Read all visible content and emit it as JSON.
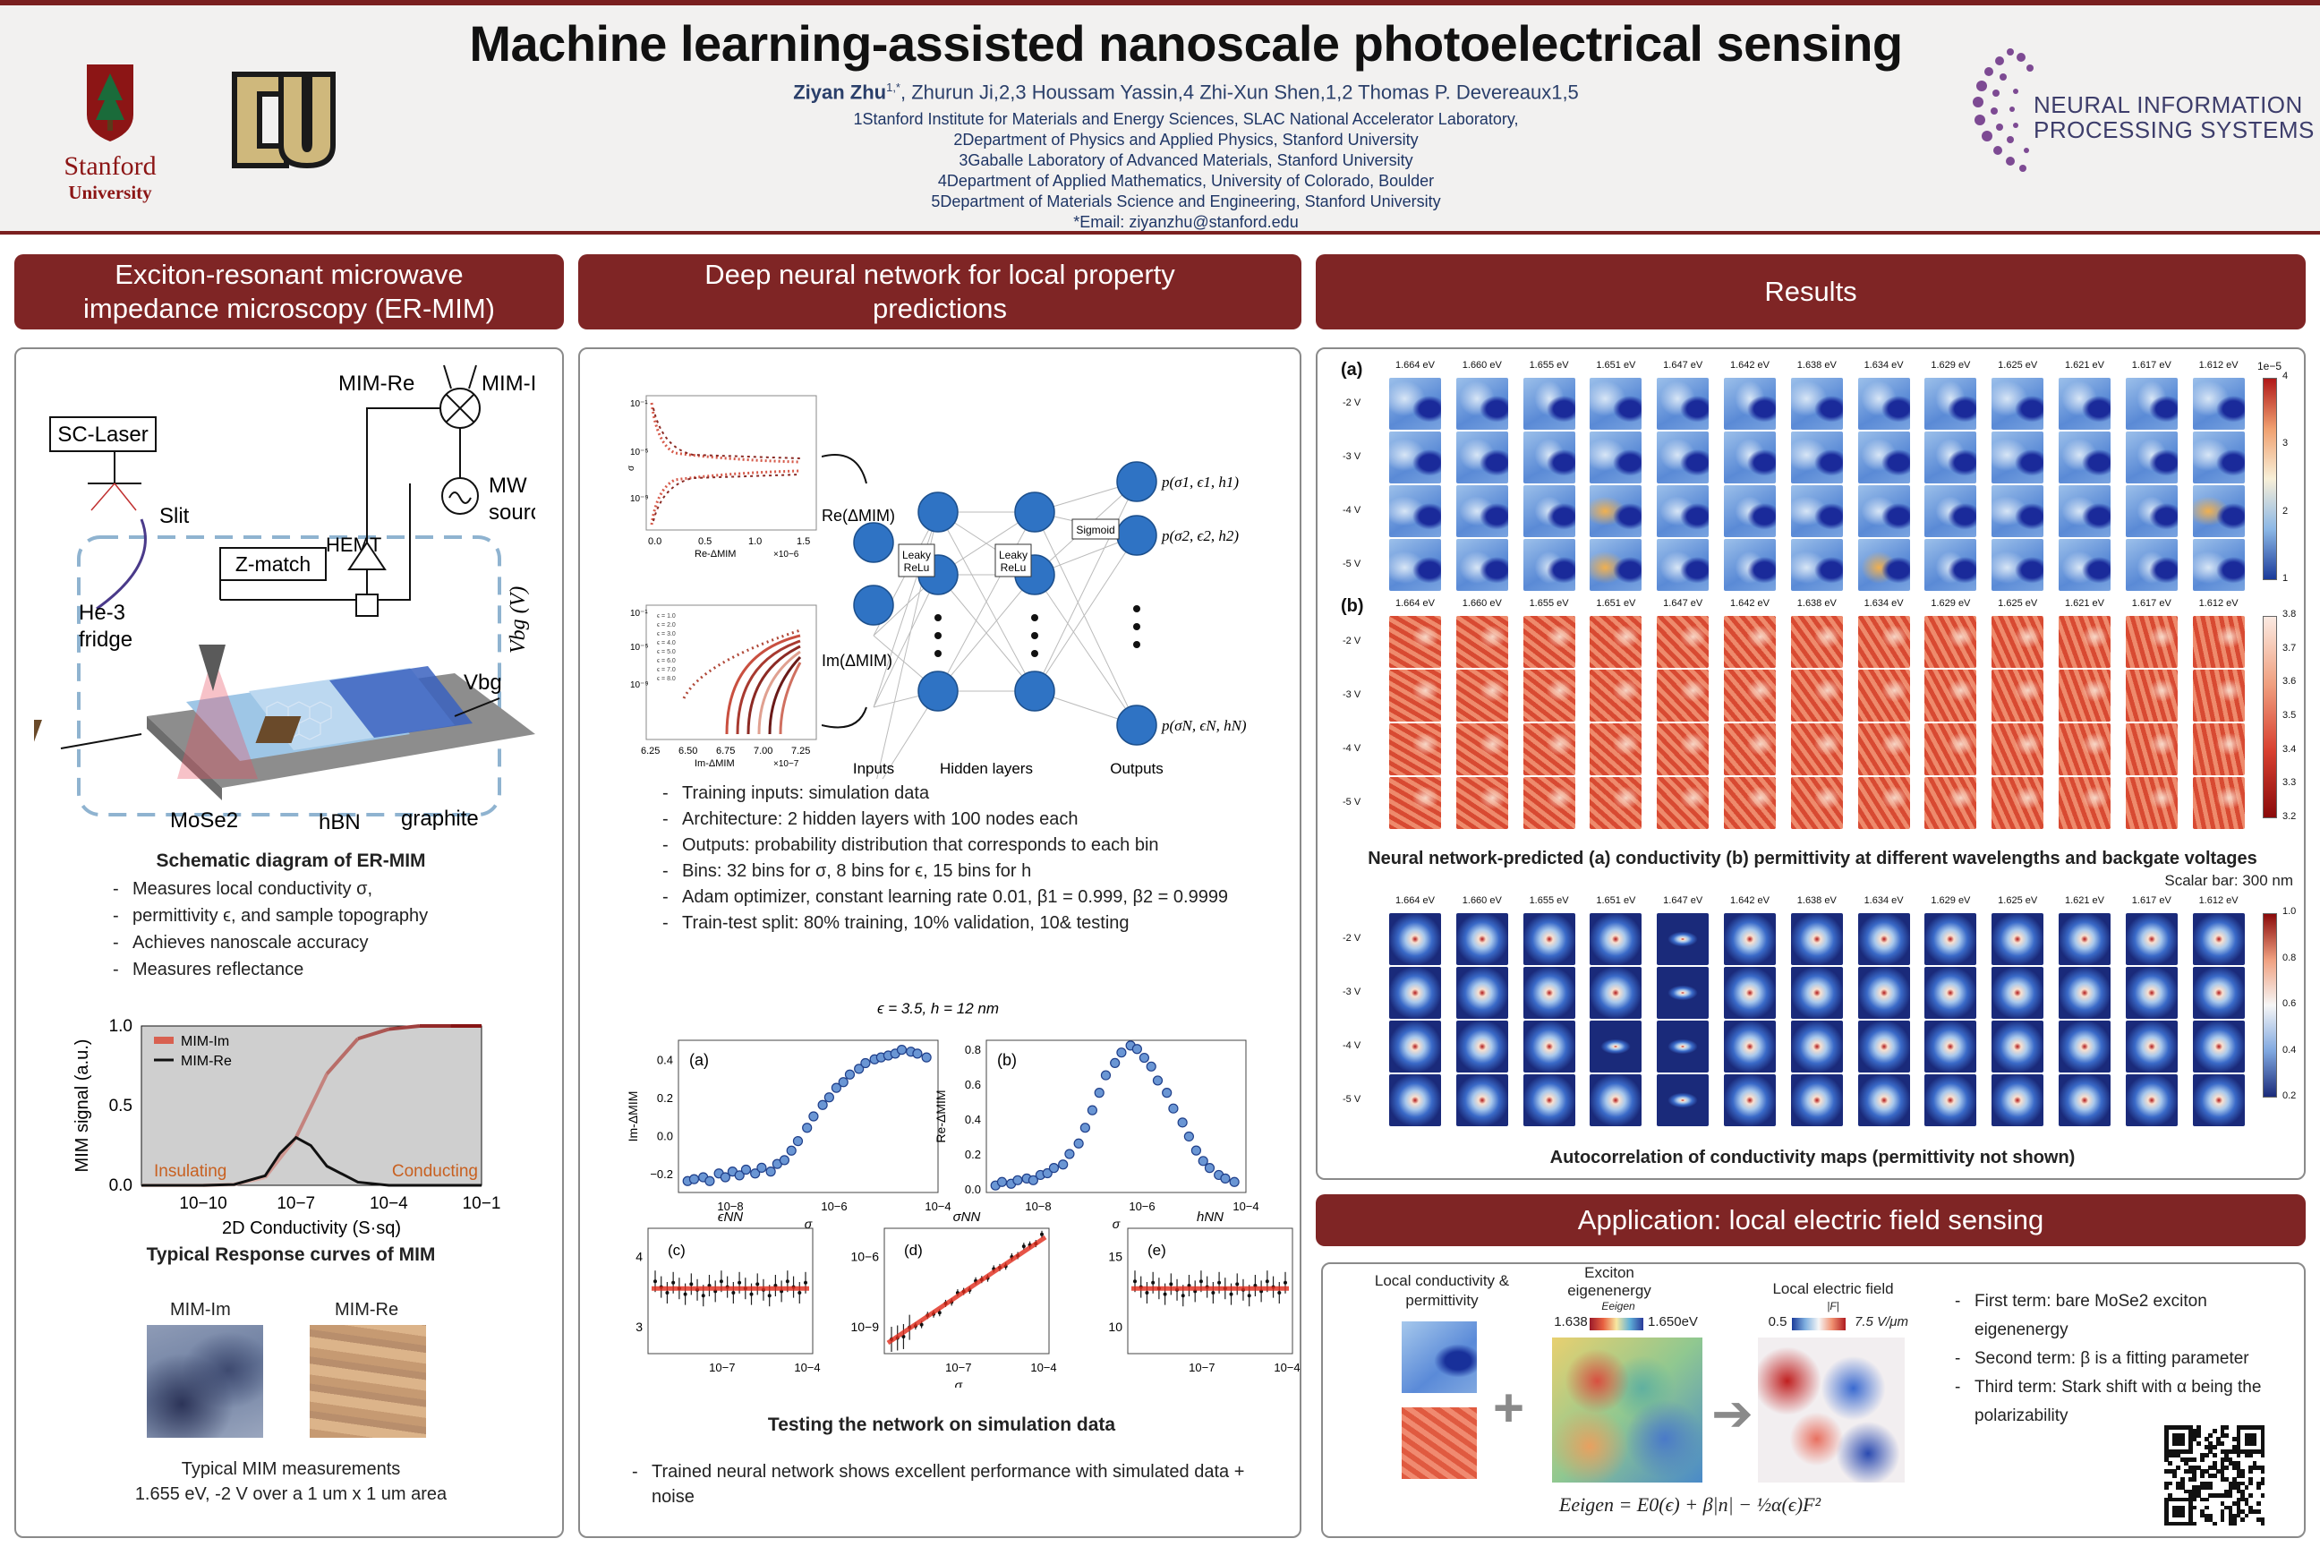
{
  "header": {
    "title": "Machine learning-assisted nanoscale photoelectrical sensing",
    "authors_bold": "Ziyan Zhu",
    "authors_bold_sup": "1,*",
    "authors_rest": ", Zhurun Ji,2,3 Houssam Yassin,4 Zhi-Xun Shen,1,2 Thomas P. Devereaux1,5",
    "affiliations": [
      "1Stanford Institute for Materials and Energy Sciences, SLAC National Accelerator Laboratory,",
      "2Department of Physics and Applied Physics, Stanford University",
      "3Gaballe Laboratory of Advanced Materials, Stanford University",
      "4Department of Applied Mathematics, University of Colorado, Boulder",
      "5Department of Materials Science and Engineering, Stanford University",
      "*Email: ziyanzhu@stanford.edu"
    ],
    "stanford_name": "Stanford",
    "stanford_univ": "University",
    "neurips_line1": "NEURAL INFORMATION",
    "neurips_line2": "PROCESSING SYSTEMS",
    "colors": {
      "brand_red": "#7f2525",
      "stanford_red": "#8c1515",
      "cu_gold": "#cfb87c"
    }
  },
  "sections": {
    "ermim": "Exciton-resonant microwave impedance microscopy (ER-MIM)",
    "dnn": "Deep neural network for local property predictions",
    "results": "Results",
    "application": "Application: local electric field sensing"
  },
  "ermim": {
    "schematic": {
      "sc_laser": "SC-Laser",
      "slit": "Slit",
      "he3": "He-3",
      "fridge": "fridge",
      "zmatch": "Z-match",
      "hemt": "HEMT",
      "mim_re": "MIM-Re",
      "mim_im": "MIM-Im",
      "mw": "MW",
      "source": "source",
      "vbg_axis": "Vbg (V)",
      "vbg": "Vbg",
      "mose2": "MoSe2",
      "hbn": "hBN",
      "graphite": "graphite"
    },
    "schematic_caption": "Schematic diagram of ER-MIM",
    "bullets": [
      "Measures local conductivity σ,",
      "permittivity ϵ, and sample topography",
      "Achieves nanoscale accuracy",
      "Measures reflectance"
    ],
    "response_caption": "Typical Response curves of MIM",
    "meas_im": "MIM-Im",
    "meas_re": "MIM-Re",
    "meas_caption_1": "Typical MIM measurements",
    "meas_caption_2": "1.655 eV, -2 V over a 1 um x 1 um area"
  },
  "chart_data": [
    {
      "type": "line",
      "title": "",
      "xlabel": "2D Conductivity (S·sq)",
      "ylabel": "MIM signal (a.u.)",
      "x_scale": "log",
      "xlim": [
        1e-12,
        0.1
      ],
      "ylim": [
        0,
        1
      ],
      "x_ticks": [
        "10−10",
        "10−7",
        "10−4",
        "10−1"
      ],
      "y_ticks": [
        "0.0",
        "0.5",
        "1.0"
      ],
      "legend": "top-left",
      "annotations": [
        "Insulating",
        "Conducting"
      ],
      "series": [
        {
          "name": "MIM-Im",
          "x": [
            1e-12,
            1e-10,
            1e-09,
            1e-08,
            1e-07,
            1e-06,
            1e-05,
            0.0001,
            0.001,
            0.01,
            0.1
          ],
          "values": [
            0.0,
            0.0,
            0.005,
            0.05,
            0.3,
            0.7,
            0.92,
            0.98,
            1.0,
            1.0,
            1.0
          ]
        },
        {
          "name": "MIM-Re",
          "x": [
            1e-12,
            1e-10,
            1e-09,
            1e-08,
            3e-08,
            1e-07,
            3e-07,
            1e-06,
            1e-05,
            0.0001,
            0.1
          ],
          "values": [
            0.0,
            0.0,
            0.005,
            0.06,
            0.2,
            0.3,
            0.25,
            0.12,
            0.02,
            0.0,
            0.0
          ]
        }
      ]
    },
    {
      "type": "scatter",
      "title": "ϵ = 3.5, h = 12 nm",
      "panel": "(a)",
      "xlabel": "σ",
      "ylabel": "Im-ΔMIM",
      "x_scale": "log",
      "xlim": [
        1e-09,
        0.0001
      ],
      "ylim": [
        -0.3,
        0.5
      ],
      "x_ticks": [
        "10−8",
        "10−6",
        "10−4"
      ],
      "y_ticks": [
        "−0.2",
        "0.0",
        "0.2",
        "0.4"
      ],
      "x": [
        1.5e-09,
        2e-09,
        3e-09,
        4e-09,
        6e-09,
        8e-09,
        1.1e-08,
        1.5e-08,
        2e-08,
        3e-08,
        4e-08,
        6e-08,
        8e-08,
        1.1e-07,
        1.5e-07,
        2e-07,
        3e-07,
        4e-07,
        6e-07,
        8e-07,
        1.1e-06,
        1.5e-06,
        2e-06,
        3e-06,
        4e-06,
        6e-06,
        8e-06,
        1.1e-05,
        1.5e-05,
        2e-05,
        3e-05,
        4e-05,
        6e-05
      ],
      "values": [
        -0.24,
        -0.23,
        -0.22,
        -0.24,
        -0.2,
        -0.22,
        -0.19,
        -0.21,
        -0.18,
        -0.2,
        -0.17,
        -0.19,
        -0.15,
        -0.13,
        -0.08,
        -0.03,
        0.04,
        0.1,
        0.16,
        0.2,
        0.25,
        0.28,
        0.32,
        0.35,
        0.38,
        0.4,
        0.41,
        0.42,
        0.43,
        0.45,
        0.44,
        0.43,
        0.41
      ]
    },
    {
      "type": "scatter",
      "panel": "(b)",
      "xlabel": "σ",
      "ylabel": "Re-ΔMIM",
      "x_scale": "log",
      "xlim": [
        1e-09,
        0.0001
      ],
      "ylim": [
        -0.02,
        0.85
      ],
      "x_ticks": [
        "10−8",
        "10−6",
        "10−4"
      ],
      "y_ticks": [
        "0.0",
        "0.2",
        "0.4",
        "0.6",
        "0.8"
      ],
      "x": [
        1.5e-09,
        2e-09,
        3e-09,
        4e-09,
        6e-09,
        8e-09,
        1.1e-08,
        1.5e-08,
        2e-08,
        3e-08,
        4e-08,
        6e-08,
        8e-08,
        1.1e-07,
        1.5e-07,
        2e-07,
        3e-07,
        4e-07,
        6e-07,
        8e-07,
        1.1e-06,
        1.5e-06,
        2e-06,
        3e-06,
        4e-06,
        6e-06,
        8e-06,
        1.1e-05,
        1.5e-05,
        2e-05,
        3e-05,
        4e-05,
        6e-05
      ],
      "values": [
        0.02,
        0.04,
        0.03,
        0.05,
        0.06,
        0.05,
        0.08,
        0.09,
        0.12,
        0.14,
        0.2,
        0.26,
        0.35,
        0.45,
        0.55,
        0.65,
        0.72,
        0.78,
        0.82,
        0.8,
        0.75,
        0.7,
        0.62,
        0.55,
        0.46,
        0.38,
        0.3,
        0.22,
        0.16,
        0.12,
        0.08,
        0.06,
        0.04
      ]
    },
    {
      "type": "line",
      "panel": "(c)",
      "title": "ϵNN",
      "x_scale": "log",
      "x_ticks": [
        "10−7",
        "10−4"
      ],
      "y_ticks": [
        "3",
        "4"
      ],
      "ylim": [
        2.7,
        4.5
      ],
      "x": [
        1e-09,
        1e-08,
        1e-07,
        1e-06,
        1e-05,
        0.0001
      ],
      "values": [
        3.5,
        3.5,
        3.5,
        3.5,
        3.5,
        3.5
      ]
    },
    {
      "type": "line",
      "panel": "(d)",
      "title": "σNN",
      "xlabel": "σ",
      "x_scale": "log",
      "y_scale": "log",
      "x_ticks": [
        "10−7",
        "10−4"
      ],
      "y_ticks": [
        "10−9",
        "10−6"
      ],
      "x": [
        1e-09,
        1e-08,
        1e-07,
        1e-06,
        1e-05,
        0.0001
      ],
      "values": [
        1e-09,
        1e-08,
        1e-07,
        1e-06,
        1e-05,
        0.0001
      ]
    },
    {
      "type": "line",
      "panel": "(e)",
      "title": "hNN",
      "x_scale": "log",
      "x_ticks": [
        "10−7",
        "10−4"
      ],
      "y_ticks": [
        "10",
        "15"
      ],
      "ylim": [
        7,
        17
      ],
      "x": [
        1e-09,
        1e-08,
        1e-07,
        1e-06,
        1e-05,
        0.0001
      ],
      "values": [
        12,
        12,
        12,
        12,
        12,
        12
      ]
    }
  ],
  "dnn": {
    "re_label": "Re(ΔMIM)",
    "im_label": "Im(ΔMIM)",
    "leaky1": "Leaky ReLu",
    "leaky2": "Leaky ReLu",
    "sigmoid": "Sigmoid",
    "out1": "p(σ1, ϵ1, h1)",
    "out2": "p(σ2, ϵ2, h2)",
    "outN": "p(σN, ϵN, hN)",
    "inputs": "Inputs",
    "hidden": "Hidden layers",
    "outputs": "Outputs",
    "mini_top_xlabel": "Re-ΔMIM",
    "mini_top_xticks": [
      "0.0",
      "0.5",
      "1.0",
      "1.5"
    ],
    "mini_top_xunit": "×10−6",
    "mini_bottom_xlabel": "Im-ΔMIM",
    "mini_bottom_xticks": [
      "6.25",
      "6.50",
      "6.75",
      "7.00",
      "7.25"
    ],
    "mini_bottom_xunit": "×10−7",
    "bullets": [
      "Training inputs: simulation data",
      "Architecture: 2 hidden layers with 100 nodes each",
      "Outputs: probability distribution that corresponds to each bin",
      "Bins: 32 bins for σ, 8 bins for ϵ, 15 bins for h",
      "Adam optimizer, constant learning rate 0.01, β1 = 0.999, β2 = 0.9999",
      "Train-test split: 80% training, 10% validation, 10& testing"
    ],
    "test_caption": "Testing the network on simulation data",
    "bottom_bullet_1": "Trained neural network shows excellent performance with simulated data +",
    "bottom_bullet_2": "noise"
  },
  "results": {
    "energies": [
      "1.664 eV",
      "1.660 eV",
      "1.655 eV",
      "1.651 eV",
      "1.647 eV",
      "1.642 eV",
      "1.638 eV",
      "1.634 eV",
      "1.629 eV",
      "1.625 eV",
      "1.621 eV",
      "1.617 eV",
      "1.612 eV"
    ],
    "voltages": [
      "-2 V",
      "-3 V",
      "-4 V",
      "-5 V"
    ],
    "label_a": "(a)",
    "label_b": "(b)",
    "cbar_a_ticks": [
      "4",
      "3",
      "2",
      "1"
    ],
    "cbar_a_exp": "1e−5",
    "cbar_b_ticks": [
      "3.8",
      "3.7",
      "3.6",
      "3.5",
      "3.4",
      "3.3",
      "3.2"
    ],
    "cbar_c_ticks": [
      "1.0",
      "0.8",
      "0.6",
      "0.4",
      "0.2"
    ],
    "caption_main": "Neural network-predicted (a) conductivity (b) permittivity at different wavelengths and backgate voltages",
    "scalar_bar": "Scalar bar: 300 nm",
    "caption_auto": "Autocorrelation of conductivity maps (permittivity not shown)"
  },
  "application": {
    "local_cond_1": "Local conductivity &",
    "local_cond_2": "permittivity",
    "exciton_1": "Exciton",
    "exciton_2": "eigenenergy",
    "eigen_sym": "Eeigen",
    "eigen_low": "1.638",
    "eigen_high": "1.650eV",
    "efield": "Local electric field",
    "field_sym": "|F|",
    "field_low": "0.5",
    "field_high": "7.5 V/μm",
    "equation": "Eeigen = E0(ϵ) + β|n| − ½α(ϵ)F²",
    "bullets": [
      "First term: bare MoSe2 exciton eigenenergy",
      "Second term: β is a fitting parameter",
      "Third term: Stark shift with α being the polarizability"
    ]
  }
}
